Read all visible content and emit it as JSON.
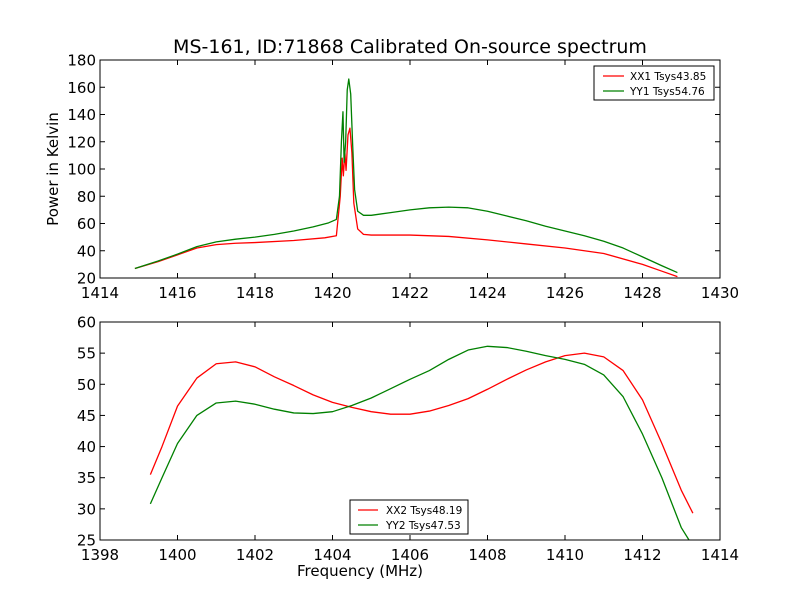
{
  "figure": {
    "title": "MS-161, ID:71868 Calibrated On-source spectrum"
  },
  "chart_data": [
    {
      "type": "line",
      "ylabel": "Power in Kelvin",
      "xlabel": "",
      "xlim": [
        1414,
        1430
      ],
      "ylim": [
        20,
        180
      ],
      "xticks": [
        1414,
        1416,
        1418,
        1420,
        1422,
        1424,
        1426,
        1428,
        1430
      ],
      "yticks": [
        20,
        40,
        60,
        80,
        100,
        120,
        140,
        160,
        180
      ],
      "grid": false,
      "legend": "top-right",
      "series": [
        {
          "name": "XX1 Tsys43.85",
          "color": "#ff0000",
          "points": [
            [
              1414.9,
              27
            ],
            [
              1415.5,
              32
            ],
            [
              1416,
              37
            ],
            [
              1416.5,
              42
            ],
            [
              1417,
              44.5
            ],
            [
              1417.5,
              45.5
            ],
            [
              1418,
              46
            ],
            [
              1419,
              47.5
            ],
            [
              1419.8,
              49.5
            ],
            [
              1420.1,
              51
            ],
            [
              1420.2,
              80
            ],
            [
              1420.25,
              108
            ],
            [
              1420.28,
              95
            ],
            [
              1420.32,
              112
            ],
            [
              1420.35,
              99
            ],
            [
              1420.4,
              125
            ],
            [
              1420.45,
              130
            ],
            [
              1420.5,
              112
            ],
            [
              1420.55,
              75
            ],
            [
              1420.65,
              56
            ],
            [
              1420.8,
              52
            ],
            [
              1421,
              51.5
            ],
            [
              1422,
              51.5
            ],
            [
              1423,
              50.5
            ],
            [
              1424,
              48
            ],
            [
              1425,
              45
            ],
            [
              1426,
              42
            ],
            [
              1427,
              38
            ],
            [
              1428,
              30
            ],
            [
              1428.5,
              25
            ],
            [
              1428.9,
              21
            ]
          ]
        },
        {
          "name": "YY1 Tsys54.76",
          "color": "#008000",
          "points": [
            [
              1414.9,
              27
            ],
            [
              1415.5,
              32.5
            ],
            [
              1416,
              37.5
            ],
            [
              1416.5,
              43
            ],
            [
              1417,
              46.5
            ],
            [
              1417.5,
              48.5
            ],
            [
              1418,
              50
            ],
            [
              1418.5,
              52
            ],
            [
              1419,
              54.5
            ],
            [
              1419.5,
              57.5
            ],
            [
              1419.9,
              60.5
            ],
            [
              1420.1,
              63
            ],
            [
              1420.18,
              80
            ],
            [
              1420.23,
              120
            ],
            [
              1420.27,
              142
            ],
            [
              1420.3,
              105
            ],
            [
              1420.34,
              120
            ],
            [
              1420.38,
              158
            ],
            [
              1420.42,
              166
            ],
            [
              1420.47,
              155
            ],
            [
              1420.52,
              118
            ],
            [
              1420.57,
              85
            ],
            [
              1420.65,
              69
            ],
            [
              1420.8,
              66
            ],
            [
              1421,
              66
            ],
            [
              1421.5,
              68
            ],
            [
              1422,
              70
            ],
            [
              1422.5,
              71.5
            ],
            [
              1423,
              72
            ],
            [
              1423.5,
              71.5
            ],
            [
              1424,
              69
            ],
            [
              1424.5,
              65.5
            ],
            [
              1425,
              62
            ],
            [
              1425.5,
              58
            ],
            [
              1426,
              54.5
            ],
            [
              1426.5,
              51
            ],
            [
              1427,
              47
            ],
            [
              1427.5,
              42
            ],
            [
              1428,
              35.5
            ],
            [
              1428.5,
              29
            ],
            [
              1428.9,
              24
            ]
          ]
        }
      ]
    },
    {
      "type": "line",
      "xlabel": "Frequency (MHz)",
      "ylabel": "",
      "xlim": [
        1398,
        1414
      ],
      "ylim": [
        25,
        60
      ],
      "xticks": [
        1398,
        1400,
        1402,
        1404,
        1406,
        1408,
        1410,
        1412,
        1414
      ],
      "yticks": [
        25,
        30,
        35,
        40,
        45,
        50,
        55,
        60
      ],
      "grid": false,
      "legend": "bottom-center",
      "series": [
        {
          "name": "XX2 Tsys48.19",
          "color": "#ff0000",
          "points": [
            [
              1399.3,
              35.5
            ],
            [
              1399.6,
              40
            ],
            [
              1400,
              46.5
            ],
            [
              1400.5,
              51
            ],
            [
              1401,
              53.3
            ],
            [
              1401.5,
              53.6
            ],
            [
              1402,
              52.8
            ],
            [
              1402.5,
              51.2
            ],
            [
              1403,
              49.8
            ],
            [
              1403.5,
              48.3
            ],
            [
              1404,
              47.1
            ],
            [
              1404.5,
              46.3
            ],
            [
              1405,
              45.6
            ],
            [
              1405.5,
              45.2
            ],
            [
              1406,
              45.2
            ],
            [
              1406.5,
              45.7
            ],
            [
              1407,
              46.6
            ],
            [
              1407.5,
              47.7
            ],
            [
              1408,
              49.2
            ],
            [
              1408.5,
              50.8
            ],
            [
              1409,
              52.3
            ],
            [
              1409.5,
              53.6
            ],
            [
              1410,
              54.6
            ],
            [
              1410.5,
              55
            ],
            [
              1411,
              54.4
            ],
            [
              1411.5,
              52.2
            ],
            [
              1412,
              47.5
            ],
            [
              1412.5,
              40.5
            ],
            [
              1413,
              33
            ],
            [
              1413.3,
              29.3
            ]
          ]
        },
        {
          "name": "YY2 Tsys47.53",
          "color": "#008000",
          "points": [
            [
              1399.3,
              30.8
            ],
            [
              1399.6,
              35
            ],
            [
              1400,
              40.5
            ],
            [
              1400.5,
              45
            ],
            [
              1401,
              47
            ],
            [
              1401.5,
              47.3
            ],
            [
              1402,
              46.8
            ],
            [
              1402.5,
              46
            ],
            [
              1403,
              45.4
            ],
            [
              1403.5,
              45.3
            ],
            [
              1404,
              45.6
            ],
            [
              1404.5,
              46.6
            ],
            [
              1405,
              47.8
            ],
            [
              1405.5,
              49.3
            ],
            [
              1406,
              50.8
            ],
            [
              1406.5,
              52.2
            ],
            [
              1407,
              54
            ],
            [
              1407.5,
              55.5
            ],
            [
              1408,
              56.1
            ],
            [
              1408.5,
              55.9
            ],
            [
              1409,
              55.3
            ],
            [
              1409.5,
              54.6
            ],
            [
              1410,
              54
            ],
            [
              1410.5,
              53.2
            ],
            [
              1411,
              51.5
            ],
            [
              1411.5,
              48
            ],
            [
              1412,
              42
            ],
            [
              1412.5,
              35
            ],
            [
              1413,
              27
            ],
            [
              1413.2,
              25
            ]
          ]
        }
      ]
    }
  ]
}
